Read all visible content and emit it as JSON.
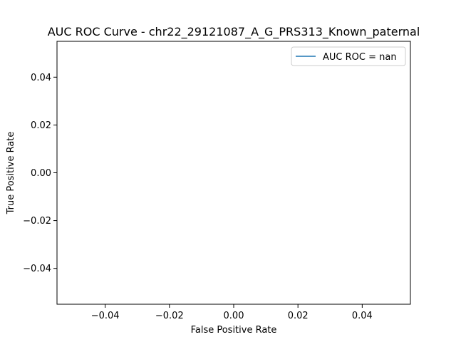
{
  "chart_data": {
    "type": "line",
    "title": "AUC ROC Curve - chr22_29121087_A_G_PRS313_Known_paternal",
    "xlabel": "False Positive Rate",
    "ylabel": "True Positive Rate",
    "xlim": [
      -0.055,
      0.055
    ],
    "ylim": [
      -0.055,
      0.055
    ],
    "xticks": [
      -0.04,
      -0.02,
      0.0,
      0.02,
      0.04
    ],
    "xtick_labels": [
      "−0.04",
      "−0.02",
      "0.00",
      "0.02",
      "0.04"
    ],
    "yticks": [
      -0.04,
      -0.02,
      0.0,
      0.02,
      0.04
    ],
    "ytick_labels": [
      "−0.04",
      "−0.02",
      "0.00",
      "0.02",
      "0.04"
    ],
    "grid": false,
    "legend_position": "top-right",
    "series": [
      {
        "name": "AUC ROC = nan",
        "color": "#1f77b4",
        "x": [],
        "y": []
      }
    ]
  }
}
